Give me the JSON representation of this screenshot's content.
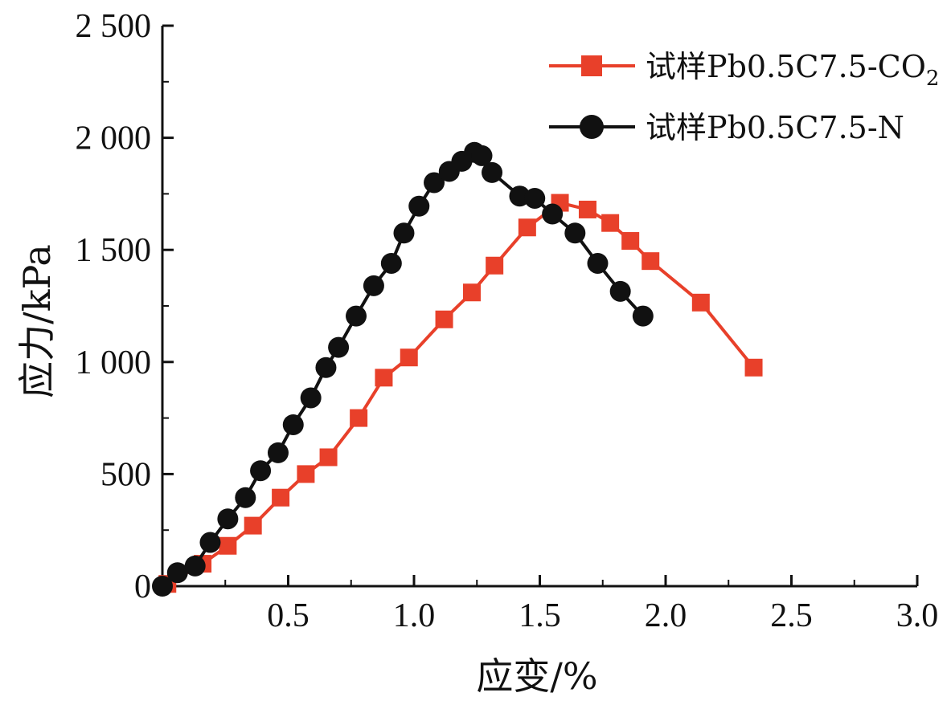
{
  "chart_data": {
    "type": "line",
    "title": "",
    "xlabel": "应变/%",
    "ylabel": "应力/kPa",
    "xlim": [
      0,
      3.0
    ],
    "ylim": [
      0,
      2500
    ],
    "x_ticks": [
      0.5,
      1.0,
      1.5,
      2.0,
      2.5,
      3.0
    ],
    "x_tick_labels": [
      "0.5",
      "1.0",
      "1.5",
      "2.0",
      "2.5",
      "3.0"
    ],
    "y_ticks": [
      0,
      500,
      1000,
      1500,
      2000,
      2500
    ],
    "y_tick_labels": [
      "0",
      "500",
      "1 000",
      "1 500",
      "2 000",
      "2 500"
    ],
    "grid": false,
    "legend_position": "top-right",
    "series": [
      {
        "name": "试样Pb0.5C7.5-CO",
        "name_subscript": "2",
        "color": "#e8402a",
        "marker": "square",
        "x": [
          0.02,
          0.16,
          0.26,
          0.36,
          0.47,
          0.57,
          0.66,
          0.78,
          0.88,
          0.98,
          1.12,
          1.23,
          1.32,
          1.45,
          1.58,
          1.69,
          1.78,
          1.86,
          1.94,
          2.14,
          2.35
        ],
        "y": [
          10,
          100,
          180,
          270,
          395,
          500,
          575,
          750,
          930,
          1020,
          1190,
          1310,
          1430,
          1600,
          1710,
          1680,
          1620,
          1540,
          1450,
          1265,
          975
        ]
      },
      {
        "name": "试样Pb0.5C7.5-N",
        "color": "#111111",
        "marker": "circle",
        "x": [
          0.0,
          0.06,
          0.13,
          0.19,
          0.26,
          0.33,
          0.39,
          0.46,
          0.52,
          0.59,
          0.65,
          0.7,
          0.77,
          0.84,
          0.91,
          0.96,
          1.02,
          1.08,
          1.14,
          1.19,
          1.24,
          1.27,
          1.31,
          1.42,
          1.48,
          1.55,
          1.64,
          1.73,
          1.82,
          1.91
        ],
        "y": [
          0,
          60,
          90,
          195,
          300,
          395,
          515,
          595,
          720,
          840,
          975,
          1065,
          1205,
          1340,
          1440,
          1575,
          1695,
          1800,
          1850,
          1895,
          1935,
          1920,
          1845,
          1740,
          1730,
          1660,
          1575,
          1440,
          1315,
          1205
        ]
      }
    ]
  }
}
